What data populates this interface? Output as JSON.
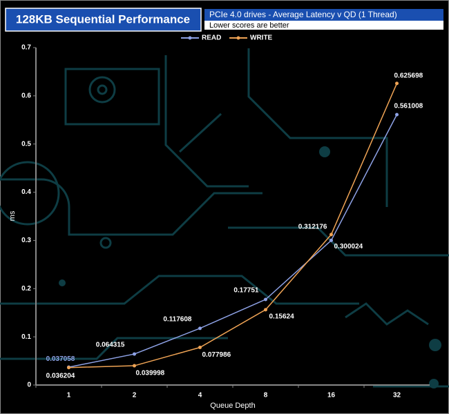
{
  "chart_data": {
    "type": "line",
    "title": "128KB Sequential Performance",
    "subtitle": "PCIe 4.0 drives - Average Latency v QD (1 Thread)",
    "note": "Lower scores are better",
    "x_label": "Queue Depth",
    "y_label": "ms",
    "categories": [
      "1",
      "2",
      "4",
      "8",
      "16",
      "32"
    ],
    "series": [
      {
        "name": "READ",
        "color": "#8ea2e6",
        "values": [
          0.037058,
          0.064315,
          0.117608,
          0.17751,
          0.300024,
          0.561008
        ]
      },
      {
        "name": "WRITE",
        "color": "#f0a455",
        "values": [
          0.036204,
          0.039998,
          0.077986,
          0.15624,
          0.312176,
          0.625698
        ]
      }
    ],
    "ylim": [
      0,
      0.7
    ],
    "yticks": [
      0,
      0.1,
      0.2,
      0.3,
      0.4,
      0.5,
      0.6,
      0.7
    ],
    "legend": "top"
  }
}
